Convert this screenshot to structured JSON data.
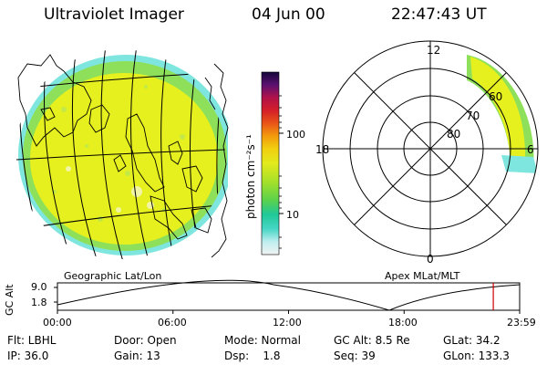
{
  "header": {
    "instrument": "Ultraviolet Imager",
    "date": "04 Jun 00",
    "time": "22:47:43 UT"
  },
  "colorbar": {
    "label": "photon cm⁻²s⁻¹",
    "ticks": [
      "100",
      "10"
    ],
    "scale": "log"
  },
  "left_panel": {
    "caption": "Geographic Lat/Lon"
  },
  "right_panel": {
    "caption": "Apex MLat/MLT",
    "mlt_labels": {
      "top": "12",
      "left": "18",
      "right": "6",
      "bottom": "0"
    },
    "lat_labels": [
      "80",
      "70",
      "60"
    ]
  },
  "orbit_plot": {
    "ylabel": "GC Alt",
    "ymax_label": "9.0",
    "ymin_label": "1.8",
    "x_ticks": [
      "00:00",
      "06:00",
      "12:00",
      "18:00",
      "23:59"
    ],
    "current_time_fraction": 0.943,
    "marker_color": "#cc0000"
  },
  "info": {
    "filter": "Flt: LBHL",
    "door": "Door: Open",
    "mode": "Mode: Normal",
    "gc_alt": "GC Alt: 8.5 Re",
    "glat": "GLat:  34.2",
    "ip": "IP: 36.0",
    "gain": "Gain: 13",
    "dsp": "Dsp:    1.8",
    "seq": "Seq: 39",
    "glon": "GLon: 133.3"
  },
  "colors": {
    "aurora_yellow": "#e6f01e",
    "aurora_green": "#8ee05a",
    "aurora_cyan": "#7fe6df"
  }
}
